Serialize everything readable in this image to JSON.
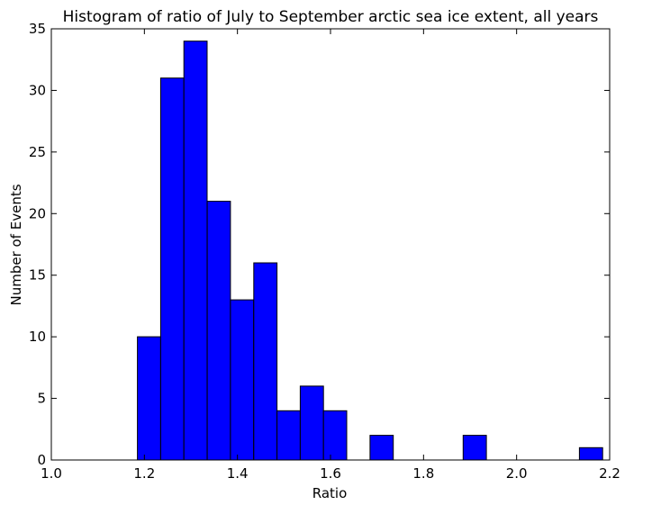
{
  "chart_data": {
    "type": "bar",
    "title": "Histogram of ratio of July to September   arctic sea ice extent, all years",
    "xlabel": "Ratio",
    "ylabel": "Number of Events",
    "xlim": [
      1.0,
      2.2
    ],
    "ylim": [
      0,
      35
    ],
    "xticks": [
      "1.0",
      "1.2",
      "1.4",
      "1.6",
      "1.8",
      "2.0",
      "2.2"
    ],
    "yticks": [
      "0",
      "5",
      "10",
      "15",
      "20",
      "25",
      "30",
      "35"
    ],
    "grid": false,
    "bar_color": "#0000ff",
    "bins": [
      {
        "x0": 1.185,
        "x1": 1.235,
        "count": 10
      },
      {
        "x0": 1.235,
        "x1": 1.285,
        "count": 31
      },
      {
        "x0": 1.285,
        "x1": 1.335,
        "count": 34
      },
      {
        "x0": 1.335,
        "x1": 1.385,
        "count": 21
      },
      {
        "x0": 1.385,
        "x1": 1.435,
        "count": 13
      },
      {
        "x0": 1.435,
        "x1": 1.485,
        "count": 16
      },
      {
        "x0": 1.485,
        "x1": 1.535,
        "count": 4
      },
      {
        "x0": 1.535,
        "x1": 1.585,
        "count": 6
      },
      {
        "x0": 1.585,
        "x1": 1.635,
        "count": 4
      },
      {
        "x0": 1.635,
        "x1": 1.685,
        "count": 0
      },
      {
        "x0": 1.685,
        "x1": 1.735,
        "count": 2
      },
      {
        "x0": 1.735,
        "x1": 1.785,
        "count": 0
      },
      {
        "x0": 1.785,
        "x1": 1.835,
        "count": 0
      },
      {
        "x0": 1.835,
        "x1": 1.885,
        "count": 0
      },
      {
        "x0": 1.885,
        "x1": 1.935,
        "count": 2
      },
      {
        "x0": 1.935,
        "x1": 1.985,
        "count": 0
      },
      {
        "x0": 1.985,
        "x1": 2.035,
        "count": 0
      },
      {
        "x0": 2.035,
        "x1": 2.085,
        "count": 0
      },
      {
        "x0": 2.085,
        "x1": 2.135,
        "count": 0
      },
      {
        "x0": 2.135,
        "x1": 2.185,
        "count": 1
      }
    ]
  }
}
